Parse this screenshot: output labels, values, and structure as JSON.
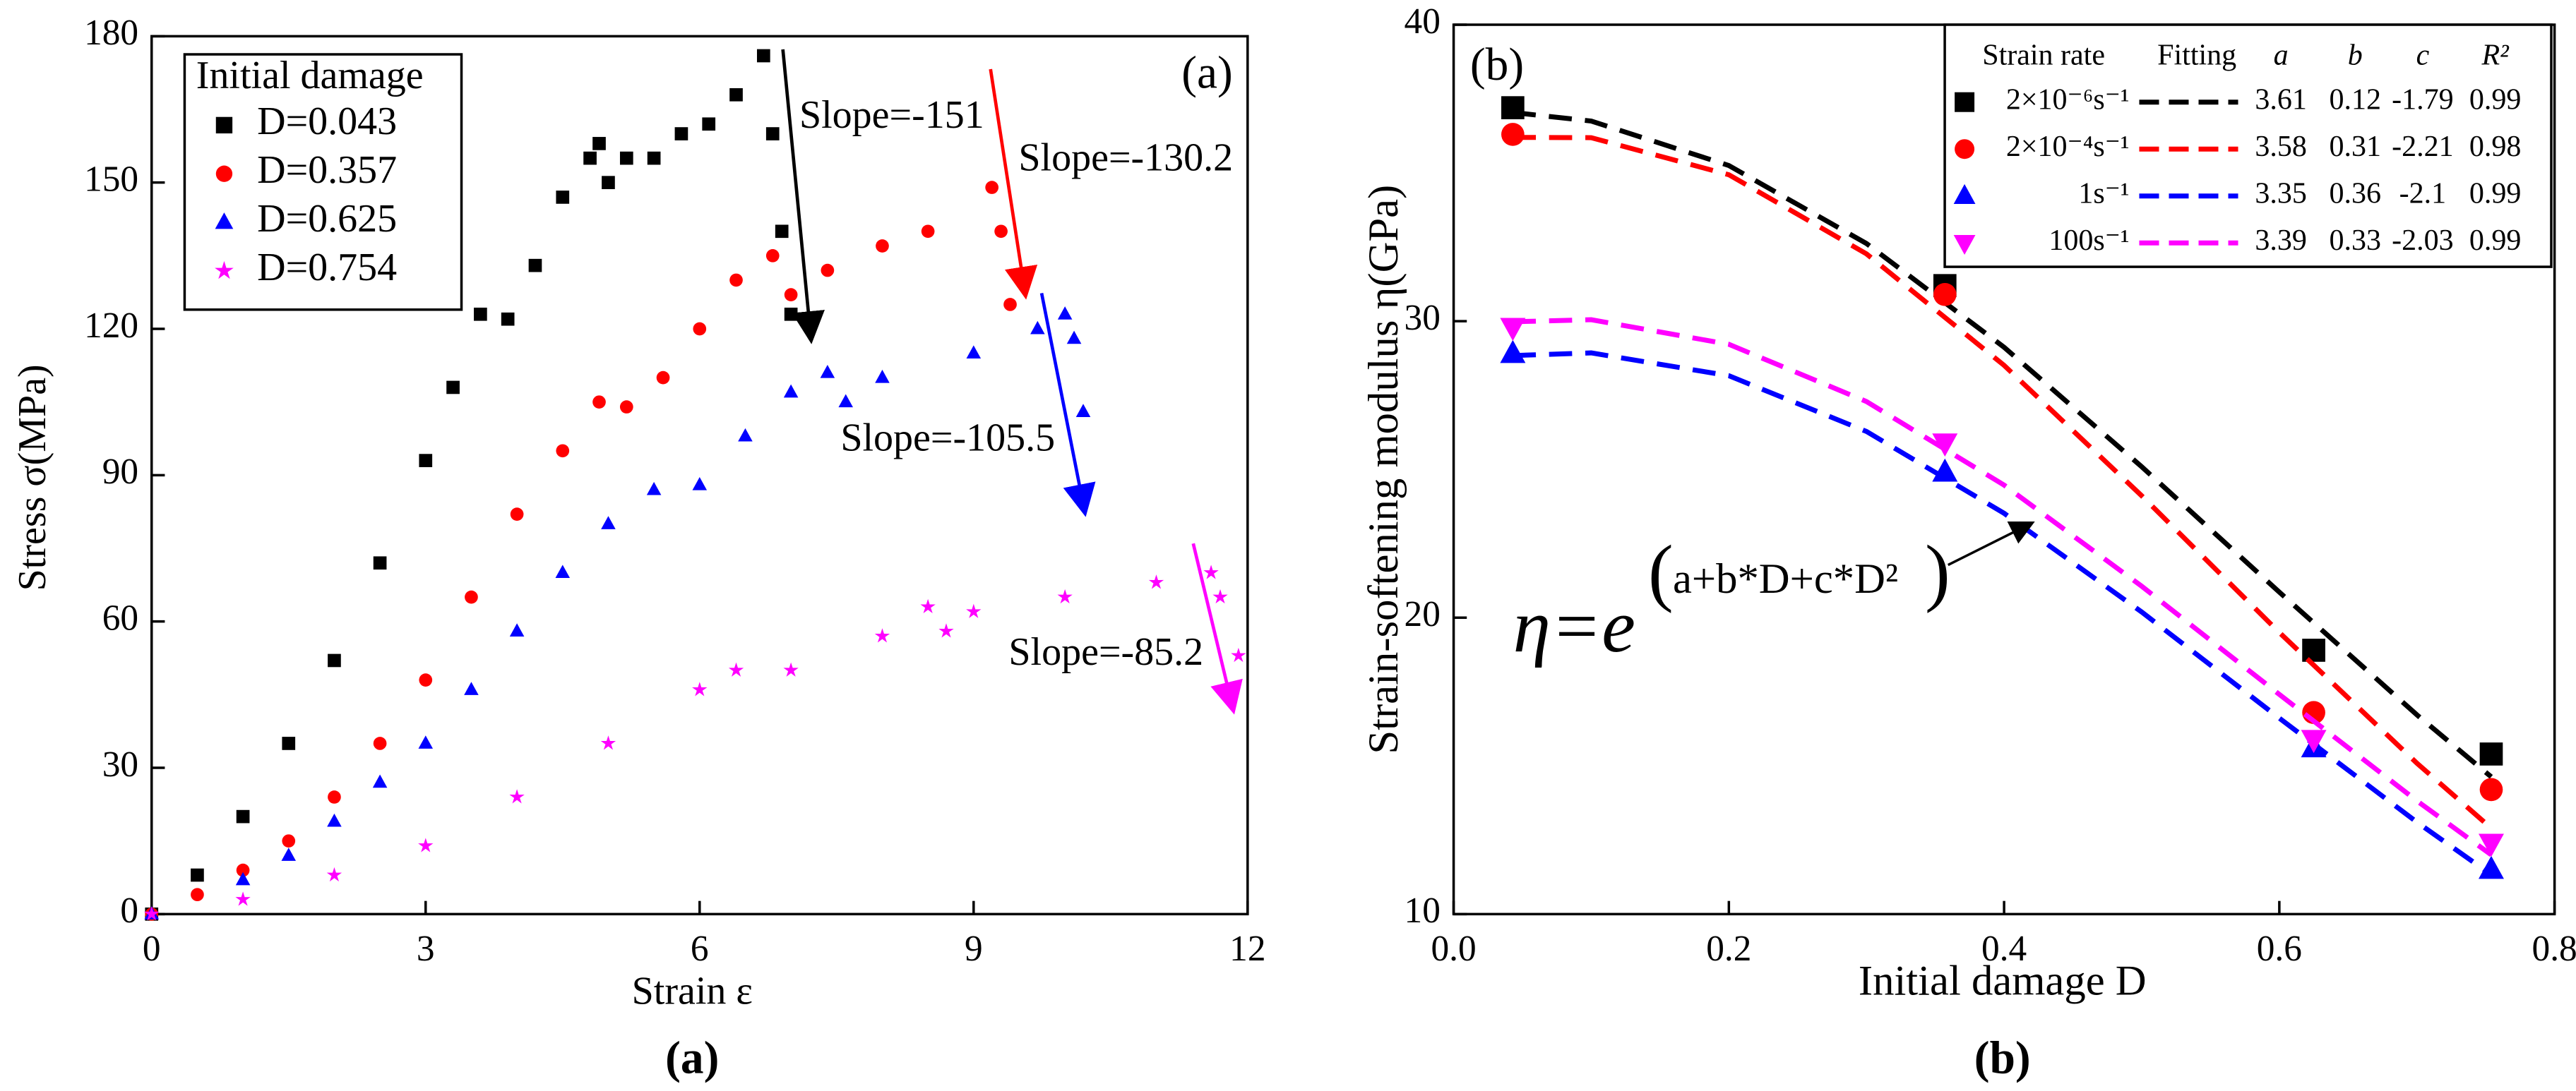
{
  "chart_data": [
    {
      "type": "scatter",
      "xlabel": "Strain ε",
      "ylabel": "Stress σ(MPa)",
      "panel_label": "(a)",
      "caption": "(a)",
      "legend_title": "Initial damage",
      "xlim": [
        0,
        12
      ],
      "xticks": [
        0,
        3,
        6,
        9,
        12
      ],
      "ylim": [
        0,
        180
      ],
      "yticks": [
        0,
        30,
        60,
        90,
        120,
        150,
        180
      ],
      "series": [
        {
          "name": "D=0.043",
          "color": "#000000",
          "marker": "square",
          "x": [
            0,
            0.5,
            1,
            1.5,
            2,
            2.5,
            3,
            3.3,
            3.6,
            3.9,
            4.2,
            4.5,
            4.8,
            4.9,
            5.0,
            5.2,
            5.5,
            5.8,
            6.1,
            6.4,
            6.7,
            6.8,
            6.9,
            7.0
          ],
          "values": [
            0,
            8,
            20,
            35,
            52,
            72,
            93,
            108,
            123,
            122,
            133,
            147,
            155,
            158,
            150,
            155,
            155,
            160,
            162,
            168,
            176,
            160,
            140,
            123
          ]
        },
        {
          "name": "D=0.357",
          "color": "#ff0000",
          "marker": "circle",
          "x": [
            0,
            0.5,
            1,
            1.5,
            2,
            2.5,
            3,
            3.5,
            4,
            4.5,
            4.9,
            5.2,
            5.6,
            6,
            6.4,
            6.8,
            7.0,
            7.4,
            8,
            8.5,
            9.2,
            9.3,
            9.4
          ],
          "values": [
            0,
            4,
            9,
            15,
            24,
            35,
            48,
            65,
            82,
            95,
            105,
            104,
            110,
            120,
            130,
            135,
            127,
            132,
            137,
            140,
            149,
            140,
            125
          ]
        },
        {
          "name": "D=0.625",
          "color": "#0000ff",
          "marker": "triangle",
          "x": [
            0,
            1,
            1.5,
            2,
            2.5,
            3,
            3.5,
            4,
            4.5,
            5,
            5.5,
            6,
            6.5,
            7,
            7.4,
            7.6,
            8,
            9,
            9.7,
            10,
            10.1,
            10.2
          ],
          "values": [
            0,
            7,
            12,
            19,
            27,
            35,
            46,
            58,
            70,
            80,
            87,
            88,
            98,
            107,
            111,
            105,
            110,
            115,
            120,
            123,
            118,
            103
          ]
        },
        {
          "name": "D=0.754",
          "color": "#ff00ff",
          "marker": "star",
          "x": [
            0,
            1,
            2,
            3,
            4,
            5,
            6,
            6.4,
            7,
            8,
            8.5,
            8.7,
            9,
            10,
            11,
            11.6,
            11.7,
            11.9
          ],
          "values": [
            0,
            3,
            8,
            14,
            24,
            35,
            46,
            50,
            50,
            57,
            63,
            58,
            62,
            65,
            68,
            70,
            65,
            53
          ]
        }
      ],
      "annotations": [
        {
          "text": "Slope=-151",
          "color": "#000000"
        },
        {
          "text": "Slope=-130.2",
          "color": "#ff0000"
        },
        {
          "text": "Slope=-105.5",
          "color": "#0000ff"
        },
        {
          "text": "Slope=-85.2",
          "color": "#ff00ff"
        }
      ]
    },
    {
      "type": "scatter",
      "xlabel": "Initial damage D",
      "ylabel": "Strain-softening modulus η(GPa)",
      "panel_label": "(b)",
      "caption": "(b)",
      "xlim": [
        0,
        0.8
      ],
      "xticks": [
        {
          "value": 0,
          "label": "0.0"
        },
        0.2,
        0.4,
        0.6,
        0.8
      ],
      "ylim": [
        10,
        40
      ],
      "yticks": [
        10,
        20,
        30,
        40
      ],
      "table_headers": [
        "Strain rate",
        "Fitting",
        "a",
        "b",
        "c",
        "R²"
      ],
      "equation": "η=e",
      "equation_exponent": "a+b*D+c*D²",
      "x": [
        0.043,
        0.357,
        0.625,
        0.754
      ],
      "fit_x": [
        0.043,
        0.1,
        0.2,
        0.3,
        0.4,
        0.5,
        0.6,
        0.7,
        0.754
      ],
      "series": [
        {
          "name": "2×10⁻⁶s⁻¹",
          "color": "#000000",
          "marker": "square",
          "values": [
            37.2,
            31.2,
            18.9,
            15.4
          ],
          "fit_a": 3.61,
          "fit_b": 0.12,
          "fit_c": -1.79,
          "fit_r2": 0.99,
          "fit_values": [
            37.04,
            36.75,
            35.25,
            32.62,
            29.12,
            25.09,
            20.86,
            16.72,
            14.63
          ]
        },
        {
          "name": "2×10⁻⁴s⁻¹",
          "color": "#ff0000",
          "marker": "circle",
          "values": [
            36.3,
            30.9,
            16.8,
            14.2
          ],
          "fit_a": 3.58,
          "fit_b": 0.31,
          "fit_c": -2.21,
          "fit_r2": 0.98,
          "fit_values": [
            36.2,
            36.19,
            34.94,
            32.27,
            28.51,
            24.11,
            19.5,
            15.09,
            12.9
          ]
        },
        {
          "name": "1s⁻¹",
          "color": "#0000ff",
          "marker": "triangle",
          "values": [
            28.9,
            24.9,
            15.6,
            11.5
          ],
          "fit_a": 3.35,
          "fit_b": 0.36,
          "fit_c": -2.1,
          "fit_r2": 0.99,
          "fit_values": [
            28.84,
            28.93,
            28.16,
            26.28,
            23.52,
            20.19,
            16.61,
            13.1,
            11.33
          ]
        },
        {
          "name": "100s⁻¹",
          "color": "#ff00ff",
          "marker": "triangle-down",
          "values": [
            29.8,
            25.9,
            15.9,
            12.4
          ],
          "fit_a": 3.39,
          "fit_b": 0.33,
          "fit_c": -2.03,
          "fit_r2": 0.99,
          "fit_values": [
            29.98,
            30.05,
            29.22,
            27.29,
            24.47,
            21.06,
            17.41,
            13.82,
            12.0
          ]
        }
      ]
    }
  ]
}
